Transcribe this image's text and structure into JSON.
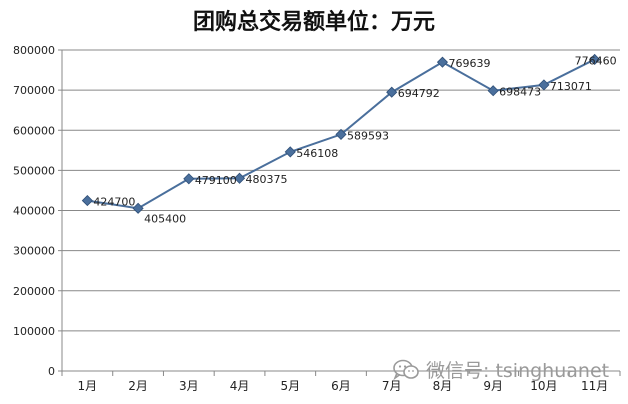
{
  "chart_data": {
    "type": "line",
    "title": "团购总交易额单位：万元",
    "categories": [
      "1月",
      "2月",
      "3月",
      "4月",
      "5月",
      "6月",
      "7月",
      "8月",
      "9月",
      "10月",
      "11月"
    ],
    "series": [
      {
        "values": [
          424700,
          405400,
          479100,
          480375,
          546108,
          589593,
          694792,
          769639,
          698473,
          713071,
          776460
        ]
      }
    ],
    "data_labels": [
      "424700",
      "405400",
      "479100",
      "480375",
      "546108",
      "589593",
      "694792",
      "769639",
      "698473",
      "713071",
      "776460"
    ],
    "ylim": [
      0,
      800000
    ],
    "yticks": [
      "0",
      "100000",
      "200000",
      "300000",
      "400000",
      "500000",
      "600000",
      "700000",
      "800000"
    ],
    "grid": true,
    "legend": "none",
    "colors": {
      "line": "#4a6f9c",
      "marker": "#4a6f9c",
      "grid": "#888888",
      "axis": "#888888"
    }
  },
  "watermark": {
    "icon": "wechat-icon",
    "text": "微信号: tsinghuanet"
  }
}
